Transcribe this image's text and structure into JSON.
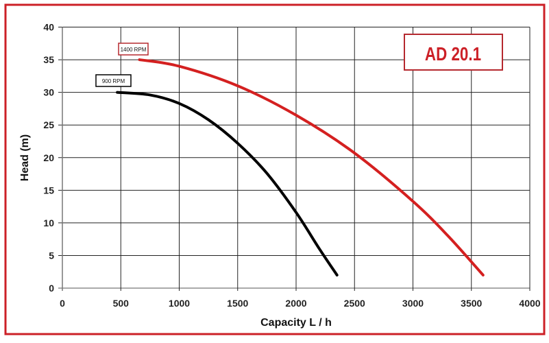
{
  "chart_data": {
    "type": "line",
    "title": "AD 20.1",
    "xlabel": "Capacity  L / h",
    "ylabel": "Head (m)",
    "xlim": [
      0,
      4000
    ],
    "ylim": [
      0,
      40
    ],
    "xticks": [
      0,
      500,
      1000,
      1500,
      2000,
      2500,
      3000,
      3500,
      4000
    ],
    "yticks": [
      0,
      5,
      10,
      15,
      20,
      25,
      30,
      35,
      40
    ],
    "grid": true,
    "colors": {
      "frame": "#cc2027",
      "title": "#cc2027",
      "grid": "#222222"
    },
    "series": [
      {
        "name": "1400  RPM",
        "color": "#d42020",
        "x": [
          660,
          1000,
          1500,
          2000,
          2500,
          3000,
          3300,
          3600
        ],
        "y": [
          35,
          34,
          31,
          26.5,
          20.7,
          13.3,
          8,
          2
        ]
      },
      {
        "name": "900 RPM",
        "color": "#000000",
        "x": [
          470,
          750,
          1000,
          1250,
          1500,
          1750,
          2000,
          2200,
          2350
        ],
        "y": [
          30,
          29.6,
          28.3,
          25.8,
          22.2,
          17.6,
          11.6,
          6,
          2
        ]
      }
    ]
  }
}
